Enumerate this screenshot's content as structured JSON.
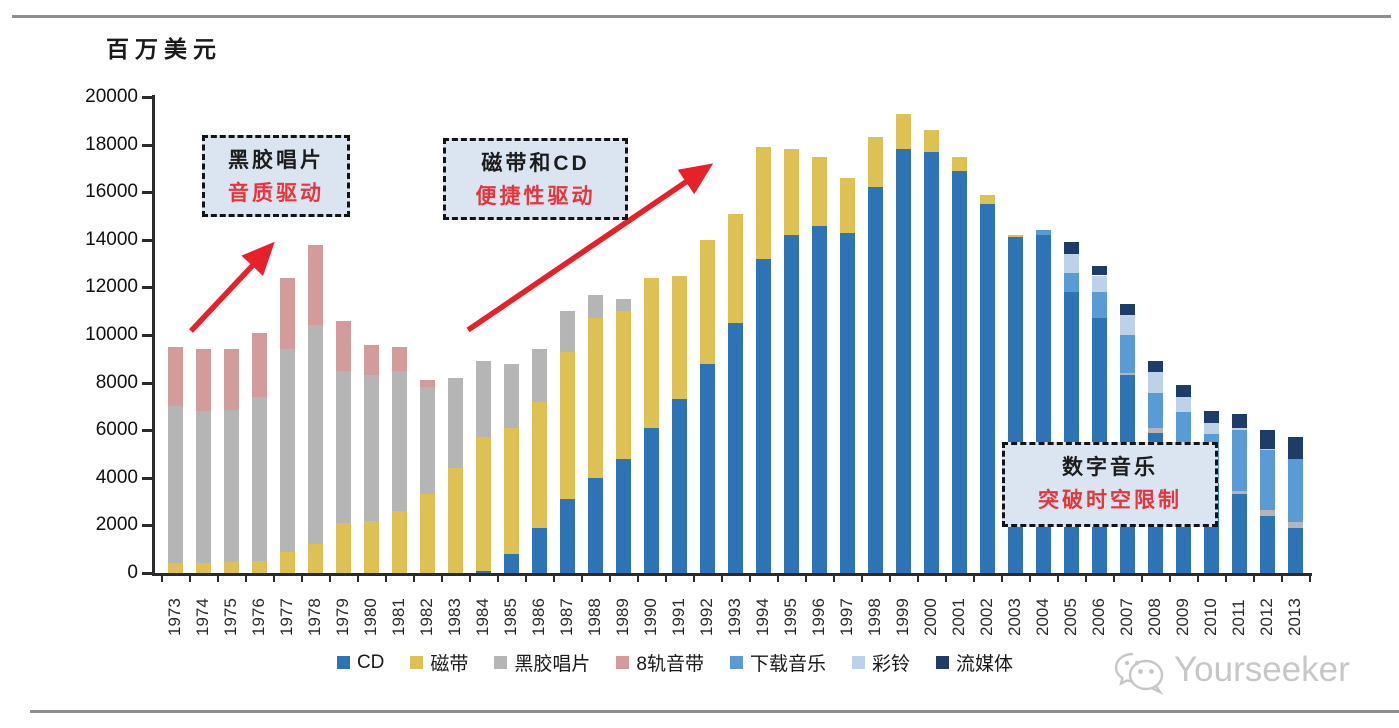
{
  "unit_label": "百万美元",
  "watermark": {
    "text": "Yourseeker",
    "icon": "wechat-icon",
    "color": "#c7c7c7"
  },
  "annotations": [
    {
      "title": "黑胶唱片",
      "subtitle": "音质驱动"
    },
    {
      "title": "磁带和CD",
      "subtitle": "便捷性驱动"
    },
    {
      "title": "数字音乐",
      "subtitle": "突破时空限制"
    }
  ],
  "colors": {
    "cd": "#2e74b5",
    "cassette": "#ddc154",
    "vinyl": "#b5b5b5",
    "eight_track": "#d29c9c",
    "downloads": "#5b9bd5",
    "ringtones": "#bdd2e9",
    "streaming": "#1f3b67",
    "annotation_bg": "#dbe5f2",
    "annotation_sub_text": "#e8353b",
    "arrow": "#e7212a",
    "axis": "#2b2b2b"
  },
  "chart_data": {
    "type": "bar",
    "stacked": true,
    "title": "",
    "ylabel": "百万美元",
    "xlabel": "",
    "ylim": [
      0,
      20000
    ],
    "ytick_step": 2000,
    "grid": false,
    "legend_position": "bottom",
    "categories": [
      1973,
      1974,
      1975,
      1976,
      1977,
      1978,
      1979,
      1980,
      1981,
      1982,
      1983,
      1984,
      1985,
      1986,
      1987,
      1988,
      1989,
      1990,
      1991,
      1992,
      1993,
      1994,
      1995,
      1996,
      1997,
      1998,
      1999,
      2000,
      2001,
      2002,
      2003,
      2004,
      2005,
      2006,
      2007,
      2008,
      2009,
      2010,
      2011,
      2012,
      2013
    ],
    "series": [
      {
        "name": "CD",
        "color": "#2e74b5",
        "values": [
          0,
          0,
          0,
          0,
          0,
          0,
          0,
          0,
          0,
          0,
          0,
          100,
          800,
          1900,
          3100,
          4000,
          4800,
          6100,
          7300,
          8800,
          10500,
          13200,
          14200,
          14600,
          14300,
          16200,
          17800,
          17700,
          16900,
          15500,
          14100,
          14200,
          11800,
          10700,
          8300,
          5900,
          4800,
          3800,
          3300,
          2400,
          1900
        ]
      },
      {
        "name": "磁带",
        "color": "#ddc154",
        "values": [
          400,
          400,
          450,
          500,
          900,
          1200,
          2100,
          2200,
          2600,
          3300,
          4400,
          5600,
          5300,
          5300,
          6200,
          6700,
          6200,
          6300,
          5200,
          5200,
          4600,
          4700,
          3600,
          2900,
          2300,
          2100,
          1500,
          900,
          600,
          400,
          100,
          0,
          0,
          0,
          0,
          0,
          0,
          0,
          0,
          0,
          0
        ]
      },
      {
        "name": "黑胶唱片",
        "color": "#b5b5b5",
        "values": [
          6600,
          6400,
          6400,
          6900,
          8500,
          9200,
          6400,
          6100,
          5900,
          4500,
          3800,
          3200,
          2700,
          2200,
          1700,
          1000,
          500,
          0,
          0,
          0,
          0,
          0,
          0,
          0,
          0,
          0,
          0,
          0,
          0,
          0,
          0,
          0,
          0,
          0,
          100,
          200,
          150,
          150,
          150,
          250,
          250
        ]
      },
      {
        "name": "8轨音带",
        "color": "#d29c9c",
        "values": [
          2500,
          2600,
          2550,
          2700,
          3000,
          3400,
          2100,
          1300,
          1000,
          300,
          0,
          0,
          0,
          0,
          0,
          0,
          0,
          0,
          0,
          0,
          0,
          0,
          0,
          0,
          0,
          0,
          0,
          0,
          0,
          0,
          0,
          0,
          0,
          0,
          0,
          0,
          0,
          0,
          0,
          0,
          0
        ]
      },
      {
        "name": "下载音乐",
        "color": "#5b9bd5",
        "values": [
          0,
          0,
          0,
          0,
          0,
          0,
          0,
          0,
          0,
          0,
          0,
          0,
          0,
          0,
          0,
          0,
          0,
          0,
          0,
          0,
          0,
          0,
          0,
          0,
          0,
          0,
          0,
          0,
          0,
          0,
          0,
          200,
          800,
          1100,
          1600,
          1450,
          1800,
          1900,
          2550,
          2500,
          2650
        ]
      },
      {
        "name": "彩铃",
        "color": "#bdd2e9",
        "values": [
          0,
          0,
          0,
          0,
          0,
          0,
          0,
          0,
          0,
          0,
          0,
          0,
          0,
          0,
          0,
          0,
          0,
          0,
          0,
          0,
          0,
          0,
          0,
          0,
          0,
          0,
          0,
          0,
          0,
          0,
          0,
          0,
          800,
          700,
          850,
          900,
          650,
          450,
          100,
          50,
          0
        ]
      },
      {
        "name": "流媒体",
        "color": "#1f3b67",
        "values": [
          0,
          0,
          0,
          0,
          0,
          0,
          0,
          0,
          0,
          0,
          0,
          0,
          0,
          0,
          0,
          0,
          0,
          0,
          0,
          0,
          0,
          0,
          0,
          0,
          0,
          0,
          0,
          0,
          0,
          0,
          0,
          0,
          500,
          400,
          450,
          450,
          500,
          500,
          600,
          800,
          900
        ]
      }
    ]
  }
}
